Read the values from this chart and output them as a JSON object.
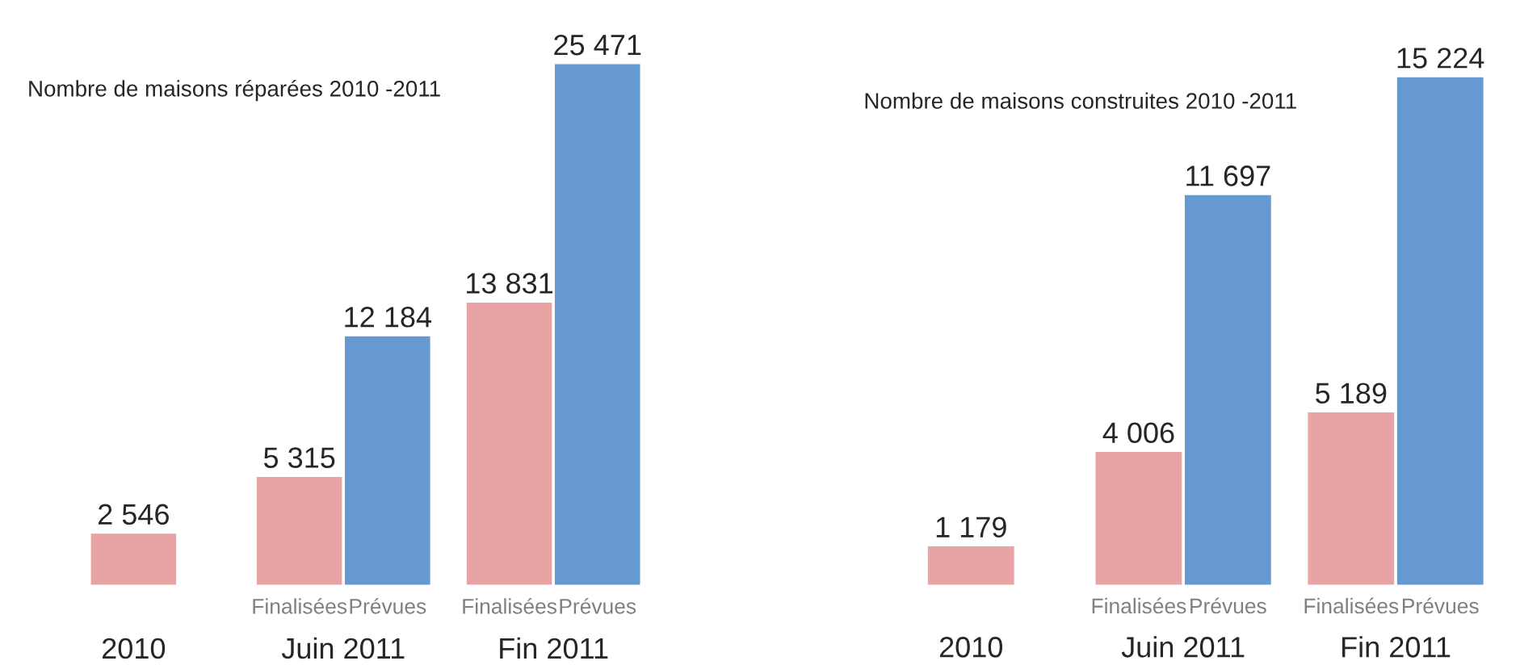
{
  "chart_data": [
    {
      "type": "bar",
      "title": "Nombre de maisons réparées 2010 -2011",
      "categories": [
        "2010",
        "Juin 2011",
        "Fin 2011"
      ],
      "series": [
        {
          "name": "Finalisées",
          "color": "#e8a3a5",
          "values": [
            2546,
            5315,
            13831
          ],
          "value_labels": [
            "2 546",
            "5 315",
            "13 831"
          ]
        },
        {
          "name": "Prévues",
          "color": "#6699d2",
          "values": [
            null,
            12184,
            25471
          ],
          "value_labels": [
            null,
            "12 184",
            "25 471"
          ]
        }
      ],
      "legend": false
    },
    {
      "type": "bar",
      "title": "Nombre de maisons construites 2010 -2011",
      "categories": [
        "2010",
        "Juin 2011",
        "Fin 2011"
      ],
      "series": [
        {
          "name": "Finalisées",
          "color": "#e8a3a5",
          "values": [
            1179,
            4006,
            5189
          ],
          "value_labels": [
            "1 179",
            "4 006",
            "5 189"
          ]
        },
        {
          "name": "Prévues",
          "color": "#6699d2",
          "values": [
            null,
            11697,
            15224
          ],
          "value_labels": [
            null,
            "11 697",
            "15 224"
          ]
        }
      ],
      "legend": false
    }
  ]
}
